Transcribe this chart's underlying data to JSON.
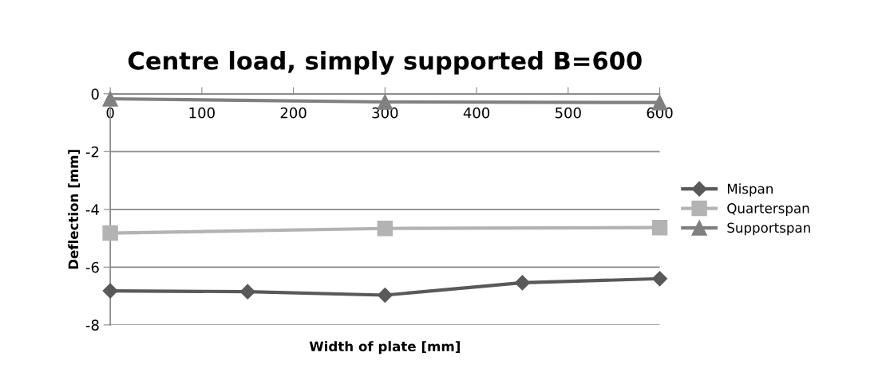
{
  "chart_data": {
    "type": "line",
    "title": "Centre load, simply supported B=600",
    "xlabel": "Width of plate [mm]",
    "ylabel": "Deflection [mm]",
    "xlim": [
      0,
      600
    ],
    "xticks": [
      0,
      100,
      200,
      300,
      400,
      500,
      600
    ],
    "ylim": [
      -8,
      0
    ],
    "yticks": [
      -8,
      -6,
      -4,
      -2,
      0
    ],
    "grid": "y",
    "legend": "right",
    "line_style": "solid",
    "series": [
      {
        "name": "Mispan",
        "color": "#595959",
        "marker": "diamond",
        "x": [
          0,
          150,
          300,
          450,
          600
        ],
        "values": [
          -6.82,
          -6.85,
          -6.97,
          -6.54,
          -6.4
        ]
      },
      {
        "name": "Quarterspan",
        "color": "#b3b3b3",
        "marker": "square",
        "x": [
          0,
          300,
          600
        ],
        "values": [
          -4.82,
          -4.66,
          -4.63
        ]
      },
      {
        "name": "Supportspan",
        "color": "#808080",
        "marker": "triangle",
        "x": [
          0,
          300,
          600
        ],
        "values": [
          -0.17,
          -0.28,
          -0.3
        ]
      }
    ]
  }
}
